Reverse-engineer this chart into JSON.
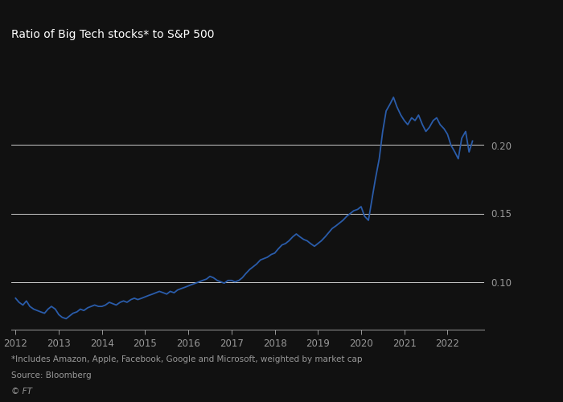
{
  "title": "Ratio of Big Tech stocks* to S&P 500",
  "footnote": "*Includes Amazon, Apple, Facebook, Google and Microsoft, weighted by market cap",
  "source": "Source: Bloomberg",
  "copyright": "© FT",
  "background_color": "#111111",
  "line_color": "#2a5caa",
  "text_color": "#999999",
  "title_color": "#ffffff",
  "grid_color": "#ffffff",
  "yticks": [
    0.1,
    0.15,
    0.2
  ],
  "ylim": [
    0.065,
    0.265
  ],
  "xlim": [
    2011.9,
    2022.85
  ],
  "xticks": [
    2012,
    2013,
    2014,
    2015,
    2016,
    2017,
    2018,
    2019,
    2020,
    2021,
    2022
  ],
  "x": [
    2012.0,
    2012.08,
    2012.17,
    2012.25,
    2012.33,
    2012.42,
    2012.5,
    2012.58,
    2012.67,
    2012.75,
    2012.83,
    2012.92,
    2013.0,
    2013.08,
    2013.17,
    2013.25,
    2013.33,
    2013.42,
    2013.5,
    2013.58,
    2013.67,
    2013.75,
    2013.83,
    2013.92,
    2014.0,
    2014.08,
    2014.17,
    2014.25,
    2014.33,
    2014.42,
    2014.5,
    2014.58,
    2014.67,
    2014.75,
    2014.83,
    2014.92,
    2015.0,
    2015.08,
    2015.17,
    2015.25,
    2015.33,
    2015.42,
    2015.5,
    2015.58,
    2015.67,
    2015.75,
    2015.83,
    2015.92,
    2016.0,
    2016.08,
    2016.17,
    2016.25,
    2016.33,
    2016.42,
    2016.5,
    2016.58,
    2016.67,
    2016.75,
    2016.83,
    2016.92,
    2017.0,
    2017.08,
    2017.17,
    2017.25,
    2017.33,
    2017.42,
    2017.5,
    2017.58,
    2017.67,
    2017.75,
    2017.83,
    2017.92,
    2018.0,
    2018.08,
    2018.17,
    2018.25,
    2018.33,
    2018.42,
    2018.5,
    2018.58,
    2018.67,
    2018.75,
    2018.83,
    2018.92,
    2019.0,
    2019.08,
    2019.17,
    2019.25,
    2019.33,
    2019.42,
    2019.5,
    2019.58,
    2019.67,
    2019.75,
    2019.83,
    2019.92,
    2020.0,
    2020.08,
    2020.17,
    2020.25,
    2020.33,
    2020.42,
    2020.5,
    2020.58,
    2020.67,
    2020.75,
    2020.83,
    2020.92,
    2021.0,
    2021.08,
    2021.17,
    2021.25,
    2021.33,
    2021.42,
    2021.5,
    2021.58,
    2021.67,
    2021.75,
    2021.83,
    2021.92,
    2022.0,
    2022.08,
    2022.17,
    2022.25,
    2022.33,
    2022.42,
    2022.5,
    2022.58
  ],
  "y": [
    0.088,
    0.085,
    0.083,
    0.086,
    0.082,
    0.08,
    0.079,
    0.078,
    0.077,
    0.08,
    0.082,
    0.08,
    0.076,
    0.074,
    0.073,
    0.075,
    0.077,
    0.078,
    0.08,
    0.079,
    0.081,
    0.082,
    0.083,
    0.082,
    0.082,
    0.083,
    0.085,
    0.084,
    0.083,
    0.085,
    0.086,
    0.085,
    0.087,
    0.088,
    0.087,
    0.088,
    0.089,
    0.09,
    0.091,
    0.092,
    0.093,
    0.092,
    0.091,
    0.093,
    0.092,
    0.094,
    0.095,
    0.096,
    0.097,
    0.098,
    0.099,
    0.1,
    0.101,
    0.102,
    0.104,
    0.103,
    0.101,
    0.1,
    0.099,
    0.101,
    0.101,
    0.1,
    0.101,
    0.103,
    0.106,
    0.109,
    0.111,
    0.113,
    0.116,
    0.117,
    0.118,
    0.12,
    0.121,
    0.124,
    0.127,
    0.128,
    0.13,
    0.133,
    0.135,
    0.133,
    0.131,
    0.13,
    0.128,
    0.126,
    0.128,
    0.13,
    0.133,
    0.136,
    0.139,
    0.141,
    0.143,
    0.145,
    0.148,
    0.15,
    0.152,
    0.153,
    0.155,
    0.148,
    0.145,
    0.16,
    0.175,
    0.19,
    0.21,
    0.225,
    0.23,
    0.235,
    0.228,
    0.222,
    0.218,
    0.215,
    0.22,
    0.218,
    0.222,
    0.215,
    0.21,
    0.213,
    0.218,
    0.22,
    0.215,
    0.212,
    0.208,
    0.2,
    0.195,
    0.19,
    0.205,
    0.21,
    0.195,
    0.203
  ]
}
